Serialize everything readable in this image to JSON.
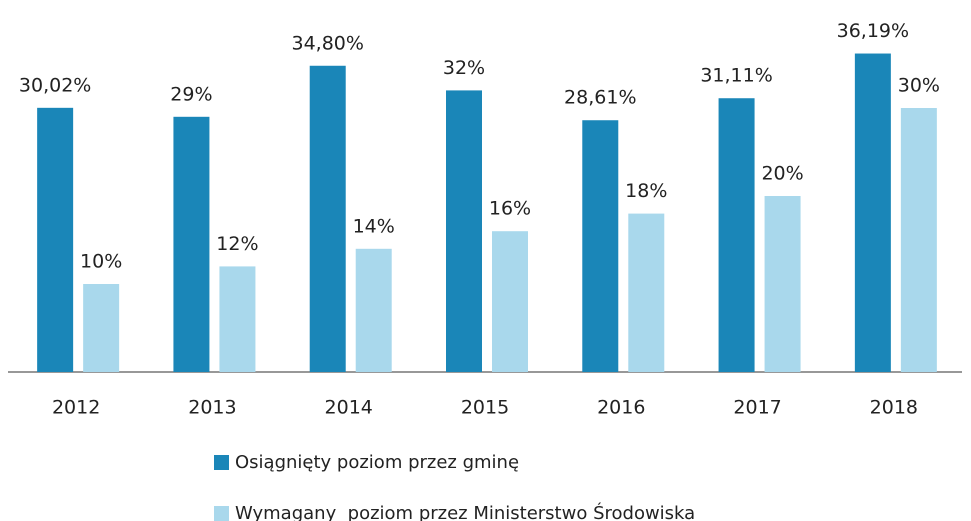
{
  "chart_data": {
    "type": "bar",
    "categories": [
      "2012",
      "2013",
      "2014",
      "2015",
      "2016",
      "2017",
      "2018"
    ],
    "series": [
      {
        "name": "Osiągnięty poziom przez gminę",
        "color": "#1a86b8",
        "values": [
          30.02,
          29,
          34.8,
          32,
          28.61,
          31.11,
          36.19
        ],
        "value_labels": [
          "30,02%",
          "29%",
          "34,80%",
          "32%",
          "28,61%",
          "31,11%",
          "36,19%"
        ]
      },
      {
        "name": "Wymagany  poziom przez Ministerstwo Środowiska",
        "color": "#a9d8ec",
        "values": [
          10,
          12,
          14,
          16,
          18,
          20,
          30
        ],
        "value_labels": [
          "10%",
          "12%",
          "14%",
          "16%",
          "18%",
          "20%",
          "30%"
        ]
      }
    ]
  }
}
